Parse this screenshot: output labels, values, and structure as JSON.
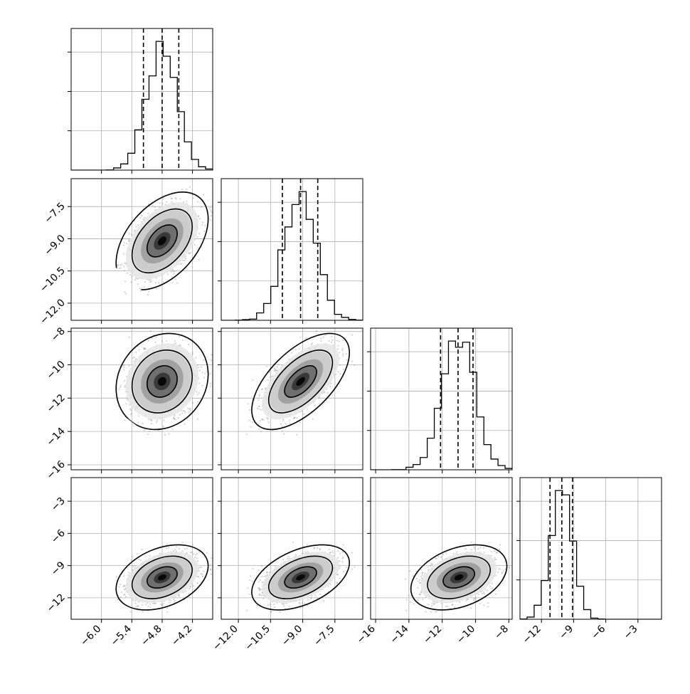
{
  "chart_data": {
    "type": "corner",
    "parameters": [
      {
        "index": 0,
        "range": [
          -6.6,
          -3.8
        ],
        "ticks": [
          "−6.0",
          "−5.4",
          "−4.8",
          "−4.2"
        ],
        "tick_values": [
          -6.0,
          -5.4,
          -4.8,
          -4.2
        ],
        "quantiles": [
          -5.17,
          -4.8,
          -4.47
        ],
        "mean": -4.8,
        "sd": 0.3
      },
      {
        "index": 1,
        "range": [
          -12.8,
          -6.2
        ],
        "ticks": [
          "−12.0",
          "−10.5",
          "−9.0",
          "−7.5"
        ],
        "tick_values": [
          -12.0,
          -10.5,
          -9.0,
          -7.5
        ],
        "quantiles": [
          -9.95,
          -9.1,
          -8.3
        ],
        "mean": -9.1,
        "sd": 0.75
      },
      {
        "index": 2,
        "range": [
          -16.3,
          -7.8
        ],
        "ticks": [
          "−16",
          "−14",
          "−12",
          "−10",
          "−8"
        ],
        "tick_values": [
          -16,
          -14,
          -12,
          -10,
          -8
        ],
        "quantiles": [
          -12.1,
          -11.05,
          -10.15
        ],
        "mean": -11.0,
        "sd": 0.95
      },
      {
        "index": 3,
        "range": [
          -14.0,
          -0.8
        ],
        "ticks": [
          "−12",
          "−9",
          "−6",
          "−3"
        ],
        "tick_values": [
          -12,
          -9,
          -6,
          -3
        ],
        "quantiles": [
          -11.2,
          -10.1,
          -9.1
        ],
        "mean": -10.1,
        "sd": 1.0
      }
    ],
    "correlations": [
      [
        0,
        1,
        0.45
      ],
      [
        0,
        2,
        0.15
      ],
      [
        1,
        2,
        0.6
      ],
      [
        0,
        3,
        0.35
      ],
      [
        1,
        3,
        0.45
      ],
      [
        2,
        3,
        0.35
      ]
    ],
    "histogram_bins": 20,
    "samples": 4000,
    "contour_levels": [
      0.39,
      0.86,
      0.99
    ],
    "grid": true,
    "colors": {
      "points": "#7f7f7f",
      "density": "#000000",
      "grid": "#b0b0b0"
    }
  }
}
